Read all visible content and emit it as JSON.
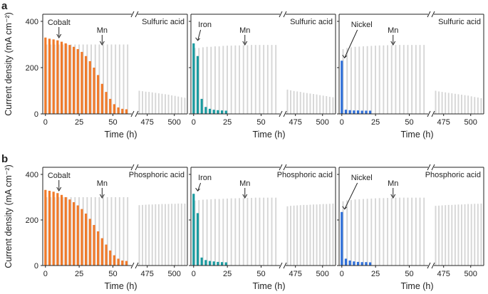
{
  "colors": {
    "cobalt": "#f07a2a",
    "iron": "#1a9a9f",
    "nickel": "#2f6fd8",
    "mn": "#d6d6d6",
    "axis": "#222222"
  },
  "shared": {
    "ylabel": "Current density (mA cm⁻²)",
    "xlabel": "Time (h)",
    "xticks_left": [
      "0",
      "25",
      "50"
    ],
    "xticks_right": [
      "475",
      "500"
    ],
    "yticks": [
      "0",
      "200",
      "400"
    ],
    "mn_label": "Mn",
    "break_mark": "//"
  },
  "chart_data": [
    {
      "type": "bar",
      "row_label": "a",
      "acid": "Sulfuric acid",
      "element": "Cobalt",
      "color": "cobalt",
      "ylim": [
        0,
        400
      ],
      "xlim_left": [
        -2,
        64
      ],
      "xlim_right": [
        466,
        512
      ],
      "element_times": [
        0,
        3,
        6,
        9,
        12,
        15,
        18,
        21,
        24,
        27,
        30,
        33,
        36,
        39,
        42,
        45,
        48,
        51,
        54,
        57,
        60
      ],
      "element_values": [
        330,
        325,
        322,
        318,
        312,
        305,
        298,
        290,
        280,
        268,
        250,
        228,
        200,
        168,
        130,
        95,
        65,
        42,
        28,
        22,
        20
      ],
      "mn_times": [
        0,
        3,
        6,
        9,
        12,
        15,
        18,
        21,
        24,
        27,
        30,
        33,
        36,
        39,
        42,
        45,
        48,
        51,
        54,
        57,
        60
      ],
      "mn_values": [
        300,
        300,
        300,
        300,
        300,
        300,
        300,
        300,
        300,
        300,
        300,
        300,
        300,
        300,
        300,
        300,
        300,
        300,
        300,
        300,
        300
      ],
      "mn_right_times": [
        467,
        470,
        473,
        476,
        479,
        482,
        485,
        488,
        491,
        494,
        497,
        500,
        503,
        506,
        509
      ],
      "mn_right_values": [
        100,
        98,
        96,
        95,
        93,
        91,
        89,
        87,
        85,
        83,
        80,
        78,
        75,
        72,
        70
      ],
      "element_arrow_t": 10,
      "mn_arrow_t": 42
    },
    {
      "type": "bar",
      "row_label": "",
      "acid": "Sulfuric acid",
      "element": "Iron",
      "color": "iron",
      "ylim": [
        0,
        400
      ],
      "xlim_left": [
        -2,
        64
      ],
      "xlim_right": [
        466,
        512
      ],
      "element_times": [
        0,
        3,
        6,
        9,
        12,
        15,
        18,
        21,
        24
      ],
      "element_values": [
        305,
        250,
        65,
        30,
        22,
        18,
        16,
        15,
        14
      ],
      "mn_times": [
        0,
        3,
        6,
        9,
        12,
        15,
        18,
        21,
        24,
        27,
        30,
        33,
        36,
        39,
        42,
        45,
        48,
        51,
        54,
        57,
        60
      ],
      "mn_values": [
        285,
        285,
        288,
        290,
        290,
        292,
        292,
        294,
        295,
        295,
        296,
        296,
        297,
        297,
        298,
        298,
        298,
        298,
        298,
        298,
        298
      ],
      "mn_right_times": [
        467,
        470,
        473,
        476,
        479,
        482,
        485,
        488,
        491,
        494,
        497,
        500,
        503,
        506,
        509
      ],
      "mn_right_values": [
        105,
        102,
        99,
        97,
        95,
        92,
        90,
        88,
        86,
        84,
        81,
        79,
        77,
        74,
        72
      ],
      "element_arrow_t": 2,
      "mn_arrow_t": 38
    },
    {
      "type": "bar",
      "row_label": "",
      "acid": "Sulfuric acid",
      "element": "Nickel",
      "color": "nickel",
      "ylim": [
        0,
        400
      ],
      "xlim_left": [
        -2,
        64
      ],
      "xlim_right": [
        466,
        512
      ],
      "element_times": [
        0,
        3,
        6,
        9,
        12,
        15,
        18,
        21
      ],
      "element_values": [
        230,
        18,
        16,
        15,
        15,
        14,
        14,
        14
      ],
      "mn_times": [
        0,
        3,
        6,
        9,
        12,
        15,
        18,
        21,
        24,
        27,
        30,
        33,
        36,
        39,
        42,
        45,
        48,
        51,
        54,
        57,
        60
      ],
      "mn_values": [
        280,
        285,
        288,
        290,
        291,
        292,
        293,
        294,
        295,
        296,
        296,
        297,
        297,
        298,
        298,
        298,
        298,
        298,
        298,
        298,
        298
      ],
      "mn_right_times": [
        467,
        470,
        473,
        476,
        479,
        482,
        485,
        488,
        491,
        494,
        497,
        500,
        503,
        506,
        509
      ],
      "mn_right_values": [
        100,
        97,
        95,
        93,
        91,
        89,
        87,
        85,
        83,
        81,
        79,
        76,
        73,
        71,
        68
      ],
      "element_arrow_t": 1,
      "mn_arrow_t": 38
    },
    {
      "type": "bar",
      "row_label": "b",
      "acid": "Phosphoric acid",
      "element": "Cobalt",
      "color": "cobalt",
      "ylim": [
        0,
        400
      ],
      "xlim_left": [
        -2,
        64
      ],
      "xlim_right": [
        466,
        512
      ],
      "element_times": [
        0,
        3,
        6,
        9,
        12,
        15,
        18,
        21,
        24,
        27,
        30,
        33,
        36,
        39,
        42,
        45,
        48,
        51,
        54,
        57,
        60
      ],
      "element_values": [
        332,
        328,
        324,
        318,
        310,
        300,
        290,
        278,
        264,
        248,
        228,
        205,
        178,
        150,
        120,
        92,
        66,
        45,
        30,
        22,
        20
      ],
      "mn_times": [
        0,
        3,
        6,
        9,
        12,
        15,
        18,
        21,
        24,
        27,
        30,
        33,
        36,
        39,
        42,
        45,
        48,
        51,
        54,
        57,
        60
      ],
      "mn_values": [
        300,
        300,
        300,
        300,
        300,
        300,
        300,
        300,
        300,
        300,
        300,
        300,
        300,
        300,
        300,
        300,
        300,
        300,
        300,
        300,
        300
      ],
      "mn_right_times": [
        467,
        470,
        473,
        476,
        479,
        482,
        485,
        488,
        491,
        494,
        497,
        500,
        503,
        506,
        509
      ],
      "mn_right_values": [
        265,
        266,
        267,
        268,
        268,
        269,
        269,
        270,
        270,
        270,
        271,
        271,
        272,
        272,
        272
      ],
      "element_arrow_t": 10,
      "mn_arrow_t": 42
    },
    {
      "type": "bar",
      "row_label": "",
      "acid": "Phosphoric acid",
      "element": "Iron",
      "color": "iron",
      "ylim": [
        0,
        400
      ],
      "xlim_left": [
        -2,
        64
      ],
      "xlim_right": [
        466,
        512
      ],
      "element_times": [
        0,
        3,
        6,
        9,
        12,
        15,
        18,
        21,
        24
      ],
      "element_values": [
        315,
        230,
        35,
        24,
        20,
        18,
        16,
        15,
        14
      ],
      "mn_times": [
        0,
        3,
        6,
        9,
        12,
        15,
        18,
        21,
        24,
        27,
        30,
        33,
        36,
        39,
        42,
        45,
        48,
        51,
        54,
        57,
        60
      ],
      "mn_values": [
        285,
        287,
        289,
        290,
        291,
        292,
        292,
        293,
        294,
        295,
        295,
        296,
        296,
        297,
        297,
        298,
        298,
        298,
        298,
        298,
        298
      ],
      "mn_right_times": [
        467,
        470,
        473,
        476,
        479,
        482,
        485,
        488,
        491,
        494,
        497,
        500,
        503,
        506,
        509
      ],
      "mn_right_values": [
        260,
        262,
        263,
        264,
        265,
        266,
        266,
        267,
        268,
        268,
        269,
        270,
        270,
        271,
        272
      ],
      "element_arrow_t": 2,
      "mn_arrow_t": 38
    },
    {
      "type": "bar",
      "row_label": "",
      "acid": "Phosphoric acid",
      "element": "Nickel",
      "color": "nickel",
      "ylim": [
        0,
        400
      ],
      "xlim_left": [
        -2,
        64
      ],
      "xlim_right": [
        466,
        512
      ],
      "element_times": [
        0,
        3,
        6,
        9,
        12,
        15,
        18,
        21
      ],
      "element_values": [
        235,
        30,
        22,
        18,
        16,
        15,
        15,
        14
      ],
      "mn_times": [
        0,
        3,
        6,
        9,
        12,
        15,
        18,
        21,
        24,
        27,
        30,
        33,
        36,
        39,
        42,
        45,
        48,
        51,
        54,
        57,
        60
      ],
      "mn_values": [
        282,
        286,
        288,
        290,
        291,
        292,
        293,
        294,
        295,
        296,
        296,
        297,
        297,
        298,
        298,
        298,
        298,
        298,
        298,
        298,
        298
      ],
      "mn_right_times": [
        467,
        470,
        473,
        476,
        479,
        482,
        485,
        488,
        491,
        494,
        497,
        500,
        503,
        506,
        509
      ],
      "mn_right_values": [
        262,
        263,
        264,
        265,
        266,
        266,
        267,
        268,
        268,
        269,
        270,
        270,
        271,
        271,
        272
      ],
      "element_arrow_t": 1,
      "mn_arrow_t": 38
    }
  ]
}
